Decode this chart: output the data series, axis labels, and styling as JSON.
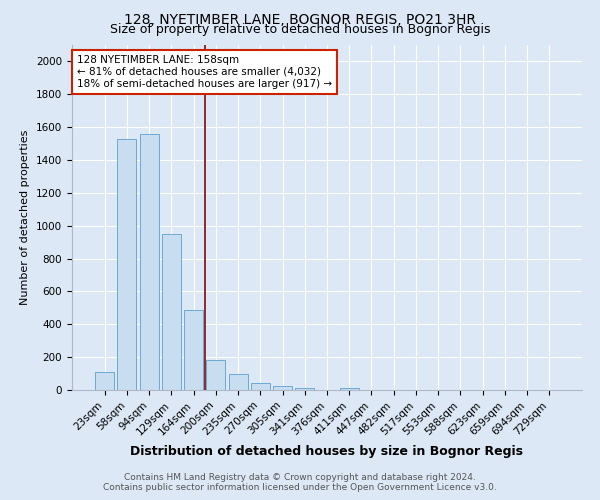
{
  "title": "128, NYETIMBER LANE, BOGNOR REGIS, PO21 3HR",
  "subtitle": "Size of property relative to detached houses in Bognor Regis",
  "xlabel": "Distribution of detached houses by size in Bognor Regis",
  "ylabel": "Number of detached properties",
  "categories": [
    "23sqm",
    "58sqm",
    "94sqm",
    "129sqm",
    "164sqm",
    "200sqm",
    "235sqm",
    "270sqm",
    "305sqm",
    "341sqm",
    "376sqm",
    "411sqm",
    "447sqm",
    "482sqm",
    "517sqm",
    "553sqm",
    "588sqm",
    "623sqm",
    "659sqm",
    "694sqm",
    "729sqm"
  ],
  "values": [
    107,
    1530,
    1560,
    950,
    490,
    180,
    100,
    45,
    22,
    14,
    0,
    15,
    0,
    0,
    0,
    0,
    0,
    0,
    0,
    0,
    0
  ],
  "bar_color": "#c8ddf0",
  "bar_edge_color": "#6aaad4",
  "vline_x_index": 4.5,
  "vline_color": "#8b1a1a",
  "annotation_text": "128 NYETIMBER LANE: 158sqm\n← 81% of detached houses are smaller (4,032)\n18% of semi-detached houses are larger (917) →",
  "annotation_box_facecolor": "#ffffff",
  "annotation_box_edgecolor": "#cc2200",
  "ylim": [
    0,
    2100
  ],
  "yticks": [
    0,
    200,
    400,
    600,
    800,
    1000,
    1200,
    1400,
    1600,
    1800,
    2000
  ],
  "bg_color": "#dce8f5",
  "grid_color": "#ffffff",
  "footer_line1": "Contains HM Land Registry data © Crown copyright and database right 2024.",
  "footer_line2": "Contains public sector information licensed under the Open Government Licence v3.0.",
  "title_fontsize": 10,
  "subtitle_fontsize": 9,
  "xlabel_fontsize": 9,
  "ylabel_fontsize": 8,
  "tick_fontsize": 7.5,
  "footer_fontsize": 6.5,
  "annotation_fontsize": 7.5
}
